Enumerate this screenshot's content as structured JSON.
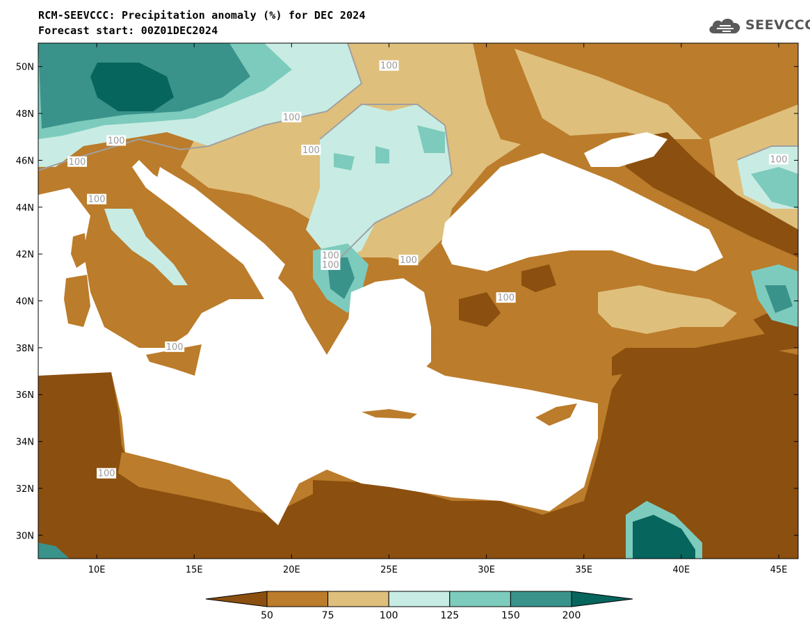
{
  "header": {
    "title": "RCM-SEEVCCC: Precipitation anomaly (%) for DEC 2024",
    "subtitle": "Forecast start: 00Z01DEC2024",
    "logo_text": "SEEVCCC",
    "logo_icon": "cloud-icon"
  },
  "map": {
    "lon_range": [
      7,
      46
    ],
    "lat_range": [
      29,
      51
    ],
    "lon_ticks": [
      "10E",
      "15E",
      "20E",
      "25E",
      "30E",
      "35E",
      "40E",
      "45E"
    ],
    "lat_ticks": [
      "50N",
      "48N",
      "46N",
      "44N",
      "42N",
      "40N",
      "38N",
      "36N",
      "34N",
      "32N",
      "30N"
    ],
    "contour_label": "100"
  },
  "colorbar": {
    "levels": [
      "50",
      "75",
      "100",
      "125",
      "150",
      "200"
    ],
    "colors": [
      "#8b4f0f",
      "#bb7c2b",
      "#dfbf7c",
      "#c8ece3",
      "#7dcbbd",
      "#3a938a",
      "#06655d"
    ]
  },
  "colors": {
    "sea": "#ffffff",
    "very_dry": "#8b4f0f",
    "dry": "#bb7c2b",
    "slightly_dry": "#dfbf7c",
    "slightly_wet": "#c8ece3",
    "wet": "#7dcbbd",
    "very_wet": "#3a938a",
    "extreme_wet": "#06655d",
    "contour": "#a0a0a0"
  }
}
